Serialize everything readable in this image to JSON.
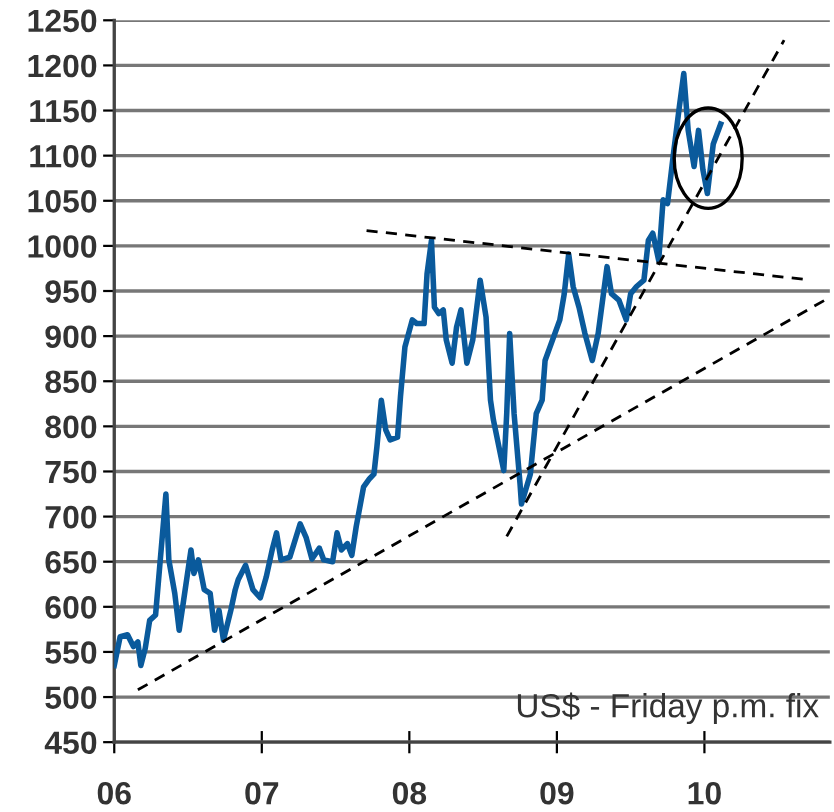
{
  "chart_data": {
    "type": "line",
    "annotations": [
      "US$ - Friday p.m. fix"
    ],
    "xlim": [
      2006,
      2010.85
    ],
    "xticks": [
      {
        "value": 2006,
        "label": "06"
      },
      {
        "value": 2007,
        "label": "07"
      },
      {
        "value": 2008,
        "label": "08"
      },
      {
        "value": 2009,
        "label": "09"
      },
      {
        "value": 2010,
        "label": "10"
      }
    ],
    "ylim": [
      450,
      1250
    ],
    "yticks": [
      450,
      500,
      550,
      600,
      650,
      700,
      750,
      800,
      850,
      900,
      950,
      1000,
      1050,
      1100,
      1150,
      1200,
      1250
    ],
    "grid": "y",
    "legend": false,
    "marker": "none",
    "series": [
      {
        "color": "#0a5a9c",
        "line_style": "solid",
        "x": [
          2006.0,
          2006.04,
          2006.09,
          2006.13,
          2006.16,
          2006.18,
          2006.21,
          2006.24,
          2006.28,
          2006.35,
          2006.37,
          2006.41,
          2006.44,
          2006.47,
          2006.52,
          2006.54,
          2006.57,
          2006.61,
          2006.65,
          2006.68,
          2006.71,
          2006.74,
          2006.79,
          2006.82,
          2006.84,
          2006.89,
          2006.94,
          2006.99,
          2007.03,
          2007.07,
          2007.1,
          2007.13,
          2007.19,
          2007.26,
          2007.3,
          2007.34,
          2007.39,
          2007.42,
          2007.48,
          2007.51,
          2007.54,
          2007.58,
          2007.61,
          2007.64,
          2007.69,
          2007.73,
          2007.76,
          2007.78,
          2007.81,
          2007.84,
          2007.87,
          2007.92,
          2007.94,
          2007.97,
          2008.02,
          2008.05,
          2008.1,
          2008.12,
          2008.15,
          2008.17,
          2008.2,
          2008.23,
          2008.25,
          2008.29,
          2008.32,
          2008.35,
          2008.39,
          2008.43,
          2008.48,
          2008.52,
          2008.55,
          2008.57,
          2008.64,
          2008.66,
          2008.68,
          2008.71,
          2008.75,
          2008.76,
          2008.82,
          2008.86,
          2008.9,
          2008.92,
          2009.02,
          2009.05,
          2009.08,
          2009.11,
          2009.15,
          2009.19,
          2009.24,
          2009.28,
          2009.34,
          2009.37,
          2009.42,
          2009.47,
          2009.5,
          2009.54,
          2009.59,
          2009.62,
          2009.65,
          2009.69,
          2009.72,
          2009.75,
          2009.79,
          2009.83,
          2009.86,
          2009.89,
          2009.93,
          2009.96,
          2009.99,
          2010.02,
          2010.06,
          2010.11
        ],
        "values": [
          535,
          567,
          569,
          556,
          561,
          535,
          554,
          585,
          591,
          725,
          652,
          615,
          574,
          607,
          663,
          637,
          652,
          619,
          615,
          574,
          596,
          563,
          596,
          619,
          630,
          646,
          619,
          610,
          633,
          663,
          682,
          652,
          655,
          692,
          677,
          653,
          665,
          652,
          650,
          682,
          663,
          670,
          657,
          689,
          733,
          742,
          747,
          777,
          829,
          796,
          785,
          788,
          833,
          888,
          918,
          914,
          914,
          969,
          1006,
          932,
          925,
          929,
          896,
          870,
          910,
          929,
          870,
          896,
          962,
          921,
          829,
          807,
          751,
          814,
          903,
          814,
          737,
          714,
          747,
          814,
          829,
          873,
          918,
          947,
          991,
          955,
          932,
          903,
          873,
          903,
          977,
          947,
          940,
          918,
          947,
          955,
          962,
          1006,
          1014,
          984,
          1051,
          1047,
          1102,
          1154,
          1191,
          1128,
          1088,
          1128,
          1084,
          1058,
          1113,
          1135
        ]
      },
      {
        "color": "#000000",
        "line_style": "dashed",
        "x": [
          2006.16,
          2010.85
        ],
        "values": [
          508,
          943
        ]
      },
      {
        "color": "#000000",
        "line_style": "dashed",
        "x": [
          2008.66,
          2010.54
        ],
        "values": [
          678,
          1228
        ]
      },
      {
        "color": "#000000",
        "line_style": "dashed",
        "x": [
          2007.71,
          2010.67
        ],
        "values": [
          1017,
          963
        ]
      }
    ]
  }
}
